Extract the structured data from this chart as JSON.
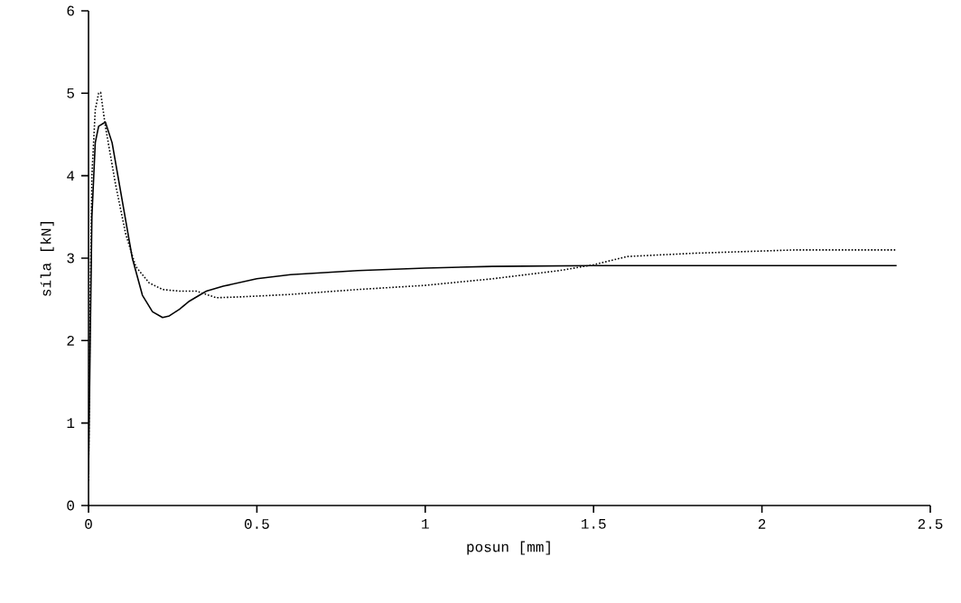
{
  "chart_data": {
    "type": "line",
    "xlabel": "posun [mm]",
    "ylabel": "síla [kN]",
    "xlim": [
      0,
      2.5
    ],
    "ylim": [
      0,
      6
    ],
    "xticks": [
      0,
      0.5,
      1,
      1.5,
      2,
      2.5
    ],
    "yticks": [
      0,
      1,
      2,
      3,
      4,
      5,
      6
    ],
    "grid": false,
    "marker": "none",
    "series": [
      {
        "color": "#000000",
        "line_style": "solid",
        "x": [
          0,
          0.005,
          0.01,
          0.02,
          0.03,
          0.05,
          0.07,
          0.1,
          0.13,
          0.16,
          0.19,
          0.22,
          0.24,
          0.27,
          0.3,
          0.35,
          0.4,
          0.5,
          0.6,
          0.8,
          1.0,
          1.2,
          1.5,
          2.0,
          2.4
        ],
        "values": [
          0.4,
          2.0,
          3.5,
          4.4,
          4.6,
          4.65,
          4.4,
          3.7,
          3.0,
          2.55,
          2.35,
          2.28,
          2.3,
          2.38,
          2.48,
          2.6,
          2.66,
          2.75,
          2.8,
          2.85,
          2.88,
          2.9,
          2.91,
          2.91,
          2.91
        ]
      },
      {
        "color": "#000000",
        "line_style": "dotted",
        "x": [
          0,
          0.005,
          0.01,
          0.02,
          0.03,
          0.036,
          0.05,
          0.08,
          0.11,
          0.14,
          0.18,
          0.22,
          0.27,
          0.32,
          0.38,
          0.45,
          0.6,
          0.8,
          1.0,
          1.2,
          1.4,
          1.5,
          1.6,
          1.8,
          2.1,
          2.4
        ],
        "values": [
          0.3,
          2.5,
          4.0,
          4.8,
          5.0,
          5.01,
          4.6,
          3.9,
          3.3,
          2.9,
          2.7,
          2.62,
          2.6,
          2.6,
          2.52,
          2.53,
          2.56,
          2.62,
          2.67,
          2.75,
          2.85,
          2.92,
          3.02,
          3.06,
          3.1,
          3.1
        ]
      }
    ]
  }
}
